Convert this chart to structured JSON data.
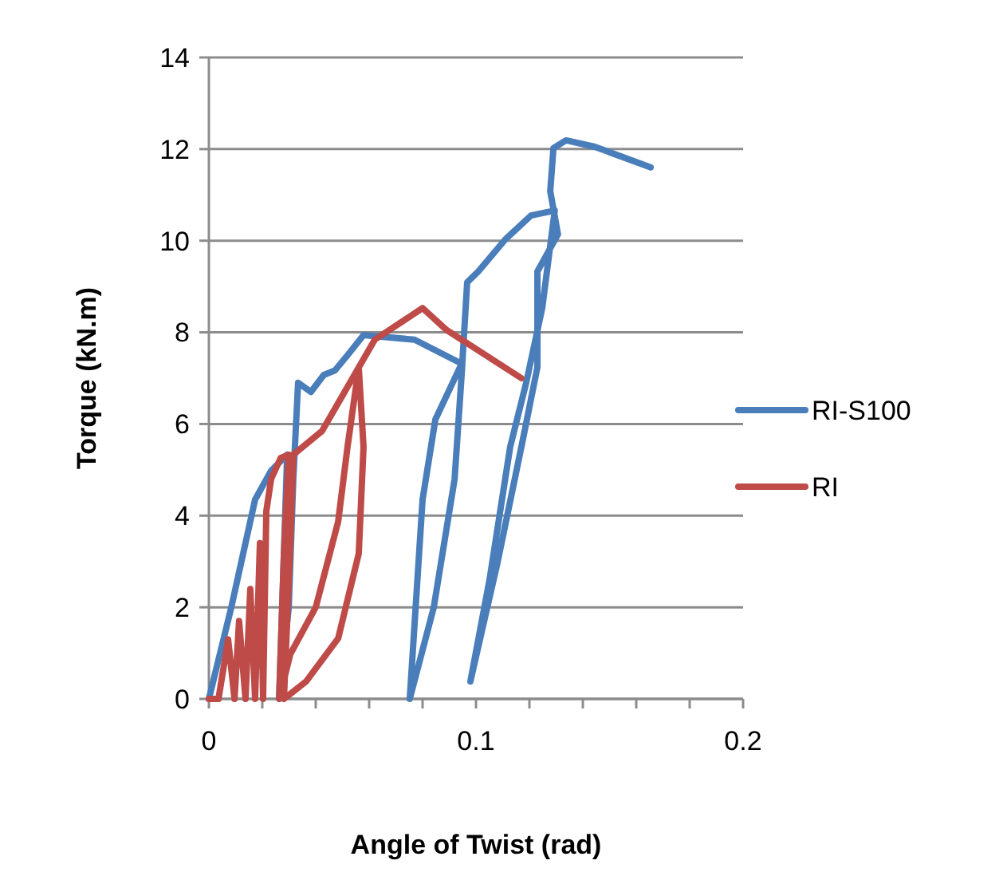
{
  "chart_data": {
    "type": "line",
    "xlabel": "Angle of Twist (rad)",
    "ylabel": "Torque (kN.m)",
    "xlim": [
      0,
      0.2
    ],
    "ylim": [
      0,
      14
    ],
    "xticks": [
      0,
      {
        "value": 0.02,
        "label": null
      },
      {
        "value": 0.04,
        "label": null
      },
      {
        "value": 0.06,
        "label": null
      },
      {
        "value": 0.08,
        "label": null
      },
      {
        "value": 0.1,
        "label": "0.1"
      },
      {
        "value": 0.12,
        "label": null
      },
      {
        "value": 0.14,
        "label": null
      },
      {
        "value": 0.16,
        "label": null
      },
      {
        "value": 0.18,
        "label": null
      },
      {
        "value": 0.2,
        "label": "0.2"
      }
    ],
    "yticks": [
      0,
      2,
      4,
      6,
      8,
      10,
      12,
      14
    ],
    "grid": "y",
    "legend": "right",
    "line_style": "solid",
    "marker": "none",
    "series": [
      {
        "name": "RI-S100",
        "color": "#4a7ebb",
        "x": [
          0,
          0.0084,
          0.0173,
          0.0233,
          0.0293,
          0.0263,
          0.0299,
          0.0316,
          0.0334,
          0.0382,
          0.043,
          0.0472,
          0.0519,
          0.0579,
          0.077,
          0.0949,
          0.092,
          0.0842,
          0.0752,
          0.08,
          0.0848,
          0.0949,
          0.0967,
          0.1009,
          0.111,
          0.1206,
          0.1295,
          0.1248,
          0.1188,
          0.1128,
          0.1051,
          0.0979,
          0.108,
          0.117,
          0.123,
          0.123,
          0.1307,
          0.1278,
          0.129,
          0.1337,
          0.1445,
          0.1654
        ],
        "values": [
          0,
          2.0,
          4.35,
          4.98,
          5.33,
          0,
          2.0,
          4.8,
          6.9,
          6.7,
          7.07,
          7.17,
          7.5,
          7.94,
          7.84,
          7.31,
          4.8,
          2.0,
          0,
          4.35,
          6.1,
          7.35,
          9.09,
          9.33,
          10.03,
          10.55,
          10.66,
          8.53,
          6.9,
          5.5,
          2.61,
          0.38,
          2.96,
          5.5,
          7.24,
          9.33,
          10.14,
          11.08,
          12.02,
          12.19,
          12.05,
          11.6
        ]
      },
      {
        "name": "RI",
        "color": "#be4b48",
        "x": [
          0,
          0.0036,
          0.0072,
          0.0096,
          0.0113,
          0.0137,
          0.0155,
          0.0173,
          0.0191,
          0.0203,
          0.0215,
          0.0233,
          0.0269,
          0.0299,
          0.0281,
          0.0263,
          0.0305,
          0.04,
          0.0484,
          0.0519,
          0.0561,
          0.0579,
          0.0561,
          0.0484,
          0.0364,
          0.0281,
          0.0305,
          0.0316,
          0.0424,
          0.0621,
          0.08,
          0.089,
          0.117
        ],
        "values": [
          0,
          0,
          1.3,
          0,
          1.7,
          0,
          2.4,
          0,
          3.4,
          0,
          4.1,
          4.8,
          5.26,
          5.33,
          3.17,
          0,
          0.98,
          2.0,
          3.87,
          5.5,
          7.24,
          5.5,
          3.17,
          1.32,
          0.38,
          0,
          3.41,
          5.33,
          5.85,
          7.84,
          8.53,
          8.05,
          7.0
        ]
      }
    ]
  }
}
